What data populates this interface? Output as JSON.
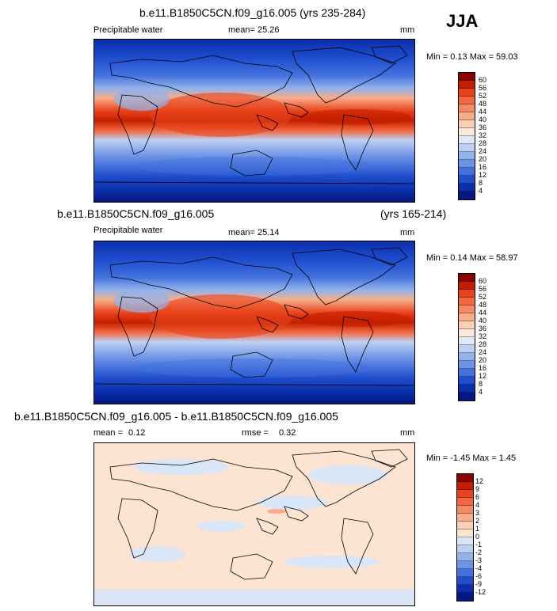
{
  "season": "JJA",
  "panels": [
    {
      "id": "top",
      "title": "b.e11.B1850C5CN.f09_g16.005 (yrs 235-284)",
      "variable": "Precipitable water",
      "mean_label": "mean=",
      "mean_value": "25.26",
      "units": "mm",
      "minmax": "Min =   0.13 Max =  59.03",
      "colorbar_labels": [
        "60",
        "56",
        "52",
        "48",
        "44",
        "40",
        "36",
        "32",
        "28",
        "24",
        "20",
        "16",
        "12",
        "8",
        "4"
      ],
      "colors": [
        "#8b0000",
        "#c41e00",
        "#e8431b",
        "#f2673f",
        "#f48a63",
        "#f7ad8a",
        "#fad0b6",
        "#fbe8dc",
        "#dfe8f8",
        "#bdd0f3",
        "#92b2ec",
        "#6b93e6",
        "#4372de",
        "#1f4fcf",
        "#0b2eab",
        "#051780"
      ]
    },
    {
      "id": "middle",
      "title_left": "b.e11.B1850C5CN.f09_g16.005",
      "title_right": "(yrs 165-214)",
      "variable": "Precipitable water",
      "mean_label": "mean=",
      "mean_value": "25.14",
      "units": "mm",
      "minmax": "Min =   0.14 Max =  58.97",
      "colorbar_labels": [
        "60",
        "56",
        "52",
        "48",
        "44",
        "40",
        "36",
        "32",
        "28",
        "24",
        "20",
        "16",
        "12",
        "8",
        "4"
      ],
      "colors": [
        "#8b0000",
        "#c41e00",
        "#e8431b",
        "#f2673f",
        "#f48a63",
        "#f7ad8a",
        "#fad0b6",
        "#fbe8dc",
        "#dfe8f8",
        "#bdd0f3",
        "#92b2ec",
        "#6b93e6",
        "#4372de",
        "#1f4fcf",
        "#0b2eab",
        "#051780"
      ]
    },
    {
      "id": "bottom",
      "title": "b.e11.B1850C5CN.f09_g16.005 - b.e11.B1850C5CN.f09_g16.005",
      "mean_label": "mean =",
      "mean_value": "0.12",
      "rmse_label": "rmse =",
      "rmse_value": "0.32",
      "units": "mm",
      "minmax": "Min =  -1.45 Max =   1.45",
      "colorbar_labels": [
        "12",
        "9",
        "6",
        "4",
        "3",
        "2",
        "1",
        "0",
        "-1",
        "-2",
        "-3",
        "-4",
        "-6",
        "-9",
        "-12"
      ],
      "colors": [
        "#8b0000",
        "#c41e00",
        "#e8431b",
        "#f2673f",
        "#f48a63",
        "#f7ad8a",
        "#fad0b6",
        "#fde3d2",
        "#d9e6f7",
        "#bdd0f3",
        "#92b2ec",
        "#6b93e6",
        "#4372de",
        "#1f4fcf",
        "#0b2eab",
        "#051780"
      ]
    }
  ]
}
